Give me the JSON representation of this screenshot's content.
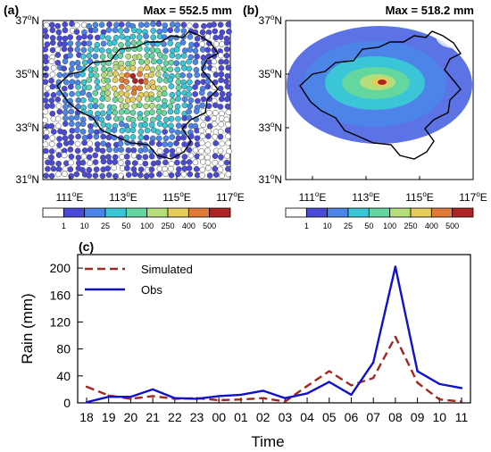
{
  "panels": {
    "a": {
      "label": "(a)",
      "max_text": "Max = 552.5 mm",
      "lat_ticks": [
        "37",
        "35",
        "33",
        "31"
      ],
      "lon_ticks": [
        "111",
        "113",
        "115",
        "117"
      ],
      "lat_suffix": "N",
      "lon_suffix": "E",
      "colorbar_labels": [
        "1",
        "10",
        "25",
        "50",
        "100",
        "250",
        "400",
        "500"
      ]
    },
    "b": {
      "label": "(b)",
      "max_text": "Max = 518.2 mm",
      "lat_ticks": [
        "37",
        "35",
        "33",
        "31"
      ],
      "lon_ticks": [
        "111",
        "113",
        "115",
        "117"
      ],
      "lat_suffix": "N",
      "lon_suffix": "E",
      "colorbar_labels": [
        "1",
        "10",
        "25",
        "50",
        "100",
        "250",
        "400",
        "500"
      ]
    },
    "c": {
      "label": "(c)"
    }
  },
  "colorbar_colors": [
    "#ffffff",
    "#4a4ad6",
    "#4a86e8",
    "#3ac6d6",
    "#64d6a0",
    "#b4de7c",
    "#e6cc5a",
    "#e07a3a",
    "#b22222"
  ],
  "chart_data": {
    "type": "line",
    "categories": [
      "18",
      "19",
      "20",
      "21",
      "22",
      "23",
      "00",
      "01",
      "02",
      "03",
      "04",
      "05",
      "06",
      "07",
      "08",
      "09",
      "10",
      "11"
    ],
    "xlabel": "Time",
    "ylabel": "Rain (mm)",
    "ylim": [
      0,
      220
    ],
    "yticks": [
      "0",
      "40",
      "80",
      "120",
      "160",
      "200"
    ],
    "legend_position": "top-left",
    "series": [
      {
        "name": "Simulated",
        "color": "#a0281e",
        "style": "dashed",
        "values": [
          24,
          11,
          6,
          10,
          6,
          7,
          4,
          5,
          7,
          2,
          25,
          47,
          26,
          37,
          98,
          30,
          5,
          2
        ]
      },
      {
        "name": "Obs",
        "color": "#1111cc",
        "style": "solid",
        "values": [
          1,
          9,
          9,
          20,
          7,
          6,
          10,
          12,
          18,
          7,
          14,
          31,
          12,
          60,
          202,
          47,
          28,
          22
        ]
      }
    ]
  }
}
